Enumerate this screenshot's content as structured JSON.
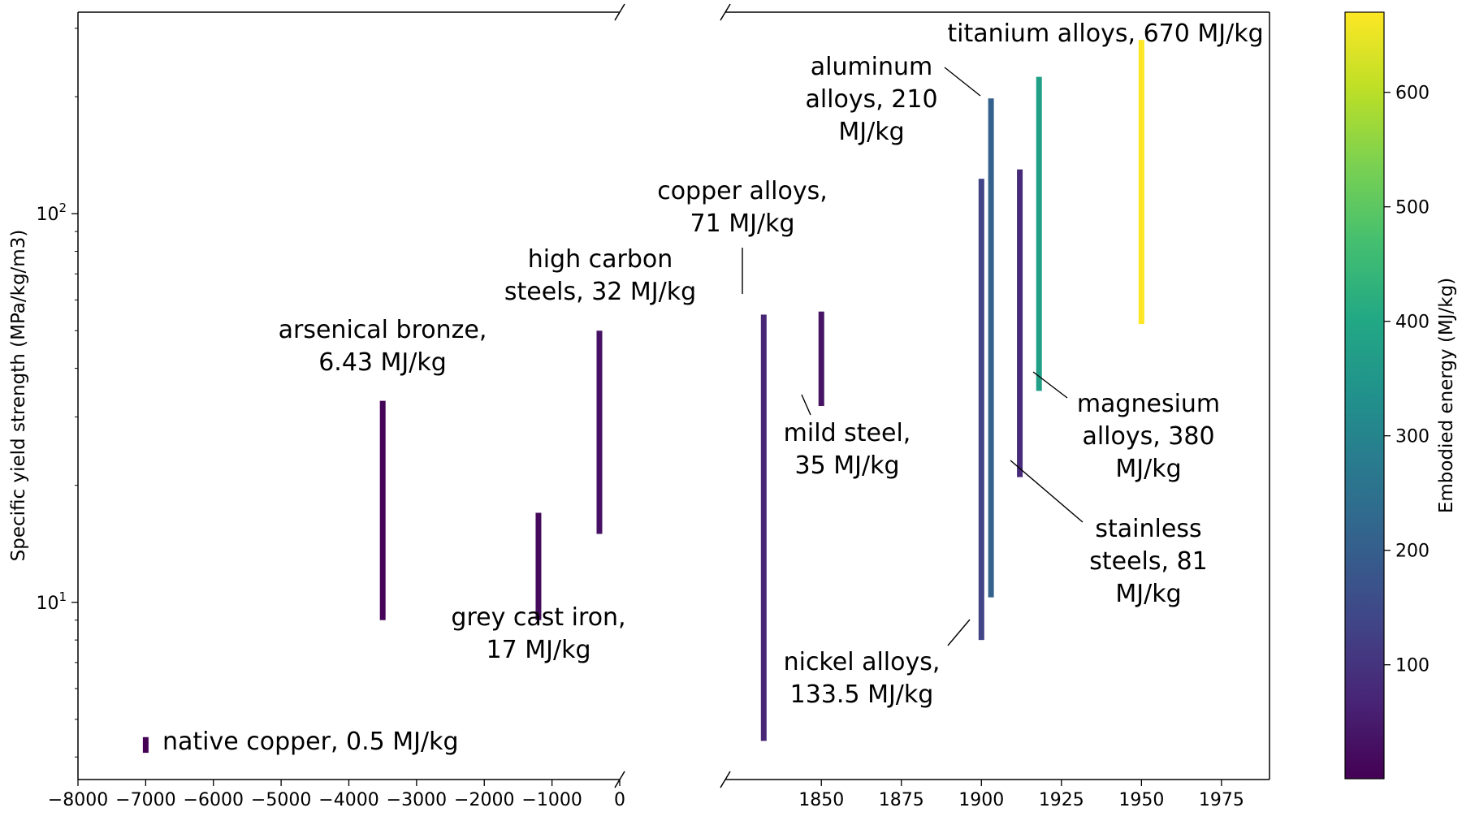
{
  "chart_data": {
    "type": "bar",
    "subtype": "floating-range",
    "title": "",
    "xlabel": "",
    "ylabel": "Specific yield strength (MPa/kg/m3)",
    "yscale": "log",
    "ylim": [
      3.5,
      330
    ],
    "x_axis_broken": true,
    "xlim_left": [
      -8000,
      0
    ],
    "xlim_right": [
      1820,
      1990
    ],
    "x_ticks_left": [
      "−8000",
      "−7000",
      "−6000",
      "−5000",
      "−4000",
      "−3000",
      "−2000",
      "−1000",
      "0"
    ],
    "x_ticks_right": [
      "1850",
      "1875",
      "1900",
      "1925",
      "1950",
      "1975"
    ],
    "y_ticks": [
      {
        "value": 10,
        "label_base": "10",
        "label_exp": "1"
      },
      {
        "value": 100,
        "label_base": "10",
        "label_exp": "2"
      }
    ],
    "colorbar": {
      "label": "Embodied energy (MJ/kg)",
      "colormap": "viridis",
      "range": [
        0.5,
        670
      ],
      "ticks": [
        "100",
        "200",
        "300",
        "400",
        "500",
        "600"
      ]
    },
    "grid": false,
    "legend": "none",
    "series": [
      {
        "x": -7000,
        "ymin": 4.1,
        "ymax": 4.5,
        "energy": 0.5,
        "label": [
          "native copper, 0.5 MJ/kg"
        ]
      },
      {
        "x": -3500,
        "ymin": 9.0,
        "ymax": 33,
        "energy": 6.43,
        "label": [
          "arsenical bronze,",
          "6.43 MJ/kg"
        ]
      },
      {
        "x": -1200,
        "ymin": 9.0,
        "ymax": 17,
        "energy": 17,
        "label": [
          "grey cast iron,",
          "17 MJ/kg"
        ]
      },
      {
        "x": -300,
        "ymin": 15,
        "ymax": 50,
        "energy": 32,
        "label": [
          "high carbon",
          "steels, 32 MJ/kg"
        ]
      },
      {
        "x": 1832,
        "ymin": 4.4,
        "ymax": 55,
        "energy": 71,
        "label": [
          "copper alloys,",
          "71 MJ/kg"
        ]
      },
      {
        "x": 1850,
        "ymin": 32,
        "ymax": 56,
        "energy": 35,
        "label": [
          "mild steel,",
          "35 MJ/kg"
        ]
      },
      {
        "x": 1900,
        "ymin": 8.0,
        "ymax": 123,
        "energy": 133.5,
        "label": [
          "nickel alloys,",
          "133.5 MJ/kg"
        ]
      },
      {
        "x": 1903,
        "ymin": 10.3,
        "ymax": 198,
        "energy": 210,
        "label": [
          "aluminum",
          "alloys, 210",
          "MJ/kg"
        ]
      },
      {
        "x": 1912,
        "ymin": 21,
        "ymax": 130,
        "energy": 81,
        "label": [
          "stainless",
          "steels, 81",
          "MJ/kg"
        ]
      },
      {
        "x": 1918,
        "ymin": 35,
        "ymax": 225,
        "energy": 380,
        "label": [
          "magnesium",
          "alloys, 380",
          "MJ/kg"
        ]
      },
      {
        "x": 1950,
        "ymin": 52,
        "ymax": 280,
        "energy": 670,
        "label": [
          "titanium alloys, 670 MJ/kg"
        ]
      }
    ]
  }
}
